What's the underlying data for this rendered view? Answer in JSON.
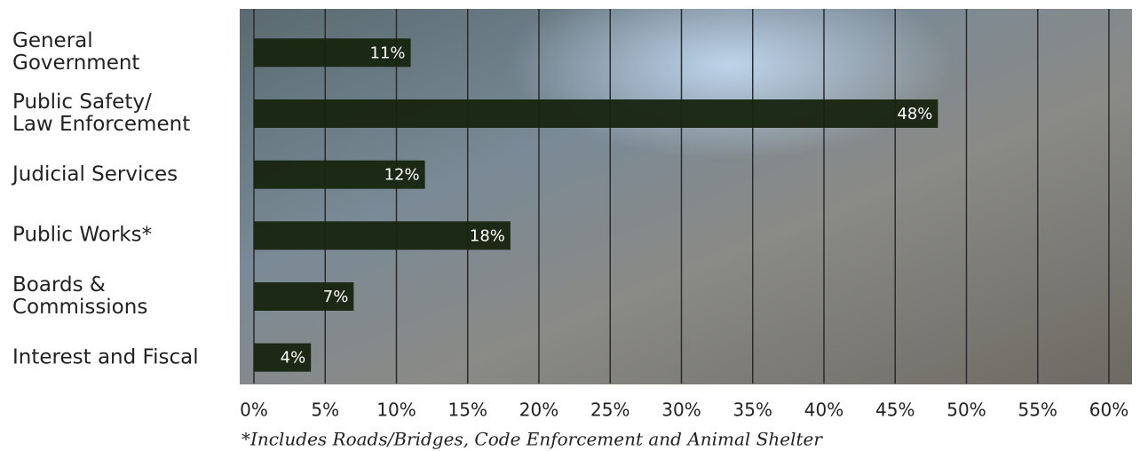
{
  "chart_data": {
    "type": "bar",
    "orientation": "horizontal",
    "categories": [
      "General\nGovernment",
      "Public Safety/\nLaw Enforcement",
      "Judicial Services",
      "Public Works*",
      "Boards &\nCommissions",
      "Interest and Fiscal"
    ],
    "values": [
      11,
      48,
      12,
      18,
      7,
      4
    ],
    "value_labels": [
      "11%",
      "48%",
      "12%",
      "18%",
      "7%",
      "4%"
    ],
    "color": "#17240f",
    "xlim": [
      0,
      60
    ],
    "xticks": [
      {
        "value": 0,
        "label": "0%"
      },
      {
        "value": 5,
        "label": "5%"
      },
      {
        "value": 10,
        "label": "10%"
      },
      {
        "value": 15,
        "label": "15%"
      },
      {
        "value": 20,
        "label": "20%"
      },
      {
        "value": 25,
        "label": "25%"
      },
      {
        "value": 30,
        "label": "30%"
      },
      {
        "value": 35,
        "label": "35%"
      },
      {
        "value": 40,
        "label": "40%"
      },
      {
        "value": 45,
        "label": "45%"
      },
      {
        "value": 50,
        "label": "50%"
      },
      {
        "value": 55,
        "label": "55%"
      },
      {
        "value": 60,
        "label": "60%"
      }
    ],
    "grid": true,
    "annotation": "*Includes Roads/Bridges, Code Enforcement and Animal Shelter"
  }
}
